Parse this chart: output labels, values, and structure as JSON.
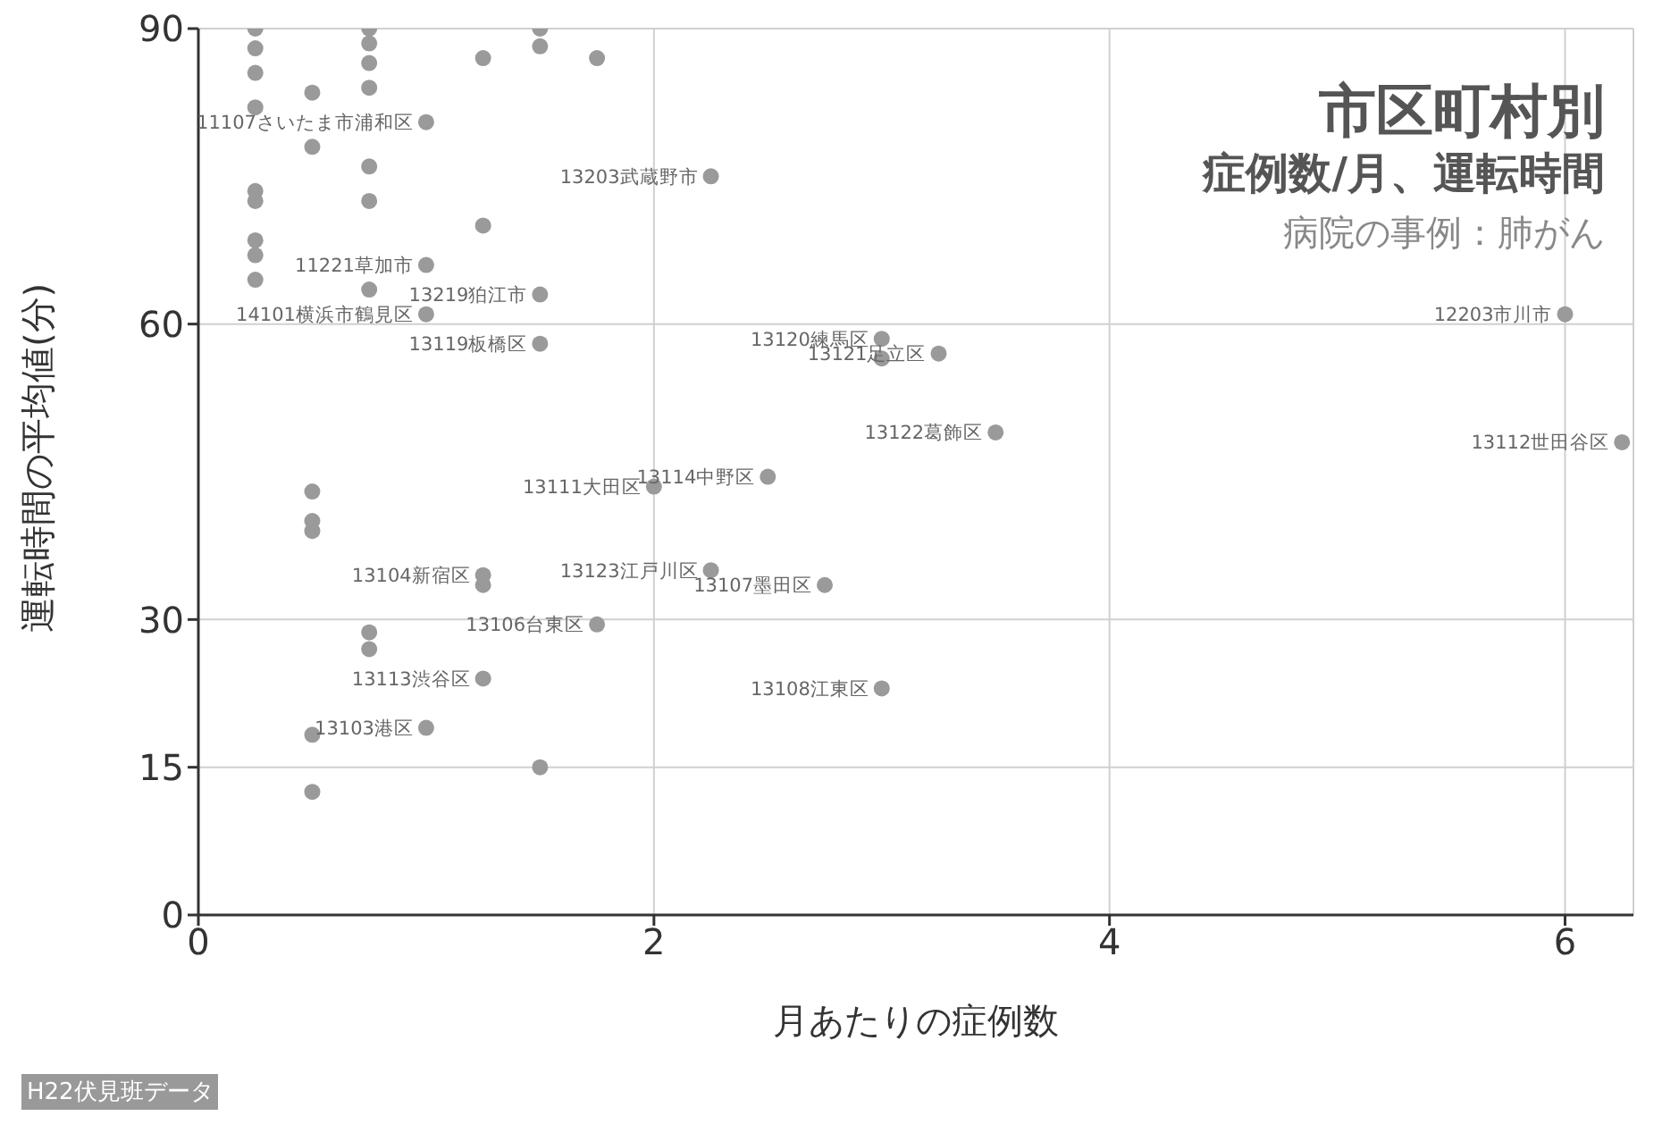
{
  "chart_data": {
    "type": "scatter",
    "title": "市区町村別",
    "subtitle": "症例数/月、運転時間",
    "xlabel": "月あたりの症例数",
    "ylabel": "運転時間の平均値(分)",
    "x": [
      0.25,
      0.75,
      1.5,
      0.25,
      0.75,
      1.5,
      0.75,
      1.25,
      1.75,
      0.25,
      0.5,
      0.75,
      0.25,
      1.0,
      0.5,
      0.75,
      2.25,
      0.25,
      0.25,
      0.75,
      1.25,
      0.25,
      0.25,
      1.0,
      0.25,
      0.75,
      1.5,
      1.0,
      1.5,
      3.0,
      3.0,
      3.25,
      3.5,
      2.5,
      2.0,
      0.5,
      0.5,
      0.5,
      1.25,
      1.25,
      2.25,
      2.75,
      1.75,
      0.75,
      0.75,
      1.25,
      3.0,
      0.5,
      1.0,
      1.5,
      0.5,
      6.0,
      6.25
    ],
    "values": [
      90,
      90,
      90,
      88,
      88.5,
      88.2,
      86.5,
      87,
      87,
      85.5,
      83.5,
      84,
      82,
      80.5,
      78,
      76,
      75,
      73.5,
      72.5,
      72.5,
      70,
      68.5,
      67,
      66,
      64.5,
      63.5,
      63,
      61,
      58,
      58.5,
      56.5,
      57,
      49,
      44.5,
      43.5,
      43,
      40,
      39,
      34.5,
      33.5,
      35,
      33.5,
      29.5,
      28.7,
      27,
      24,
      23,
      18.3,
      19,
      15,
      12.5,
      61,
      48
    ],
    "color": "#9a9a9a",
    "marker": "circle",
    "xlim": [
      0,
      6.3
    ],
    "xticks": [
      0,
      2,
      4,
      6
    ],
    "ylim": [
      0,
      90
    ],
    "yticks": [
      0,
      15,
      30,
      60,
      90
    ],
    "grid": true,
    "legend": false,
    "annotations": [
      "病院の事例：肺がん",
      "H22伏見班データ",
      {
        "text": "11107さいたま市浦和区",
        "x": 1.0,
        "y": 80.5
      },
      {
        "text": "13203武蔵野市",
        "x": 2.25,
        "y": 75
      },
      {
        "text": "11221草加市",
        "x": 1.0,
        "y": 66
      },
      {
        "text": "13219狛江市",
        "x": 1.5,
        "y": 63
      },
      {
        "text": "14101横浜市鶴見区",
        "x": 1.0,
        "y": 61
      },
      {
        "text": "13119板橋区",
        "x": 1.5,
        "y": 58
      },
      {
        "text": "13120練馬区",
        "x": 3.0,
        "y": 58.5
      },
      {
        "text": "13121足立区",
        "x": 3.25,
        "y": 57
      },
      {
        "text": "13122葛飾区",
        "x": 3.5,
        "y": 49
      },
      {
        "text": "13114中野区",
        "x": 2.5,
        "y": 44.5
      },
      {
        "text": "13111大田区",
        "x": 2.0,
        "y": 43.5
      },
      {
        "text": "13104新宿区",
        "x": 1.25,
        "y": 34.5
      },
      {
        "text": "13123江戸川区",
        "x": 2.25,
        "y": 35
      },
      {
        "text": "13107墨田区",
        "x": 2.75,
        "y": 33.5
      },
      {
        "text": "13106台東区",
        "x": 1.75,
        "y": 29.5
      },
      {
        "text": "13113渋谷区",
        "x": 1.25,
        "y": 24
      },
      {
        "text": "13108江東区",
        "x": 3.0,
        "y": 23
      },
      {
        "text": "13103港区",
        "x": 1.0,
        "y": 19
      },
      {
        "text": "12203市川市",
        "x": 6.0,
        "y": 61
      },
      {
        "text": "13112世田谷区",
        "x": 6.25,
        "y": 48
      }
    ]
  }
}
